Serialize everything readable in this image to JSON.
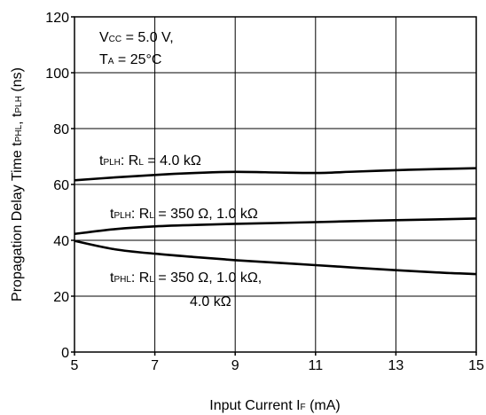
{
  "chart_data": {
    "type": "line",
    "xlim": [
      5,
      15
    ],
    "ylim": [
      0,
      120
    ],
    "grid": true,
    "xticks": [
      "5",
      "7",
      "9",
      "11",
      "13",
      "15"
    ],
    "yticks": [
      "0",
      "20",
      "40",
      "60",
      "80",
      "100",
      "120"
    ],
    "xlabel": {
      "main": "Input Current  I",
      "sub": "F",
      "unit": " (mA)"
    },
    "ylabel": {
      "prefix": "Propagation Delay Time  t",
      "sub1": "PHL",
      "mid": ", t",
      "sub2": "PLH",
      "unit": " (ns)"
    },
    "conditions": [
      {
        "main": "V",
        "sub": "CC",
        "rest": " = 5.0 V,"
      },
      {
        "main": "T",
        "sub": "A",
        "rest": " = 25°C"
      }
    ],
    "series": [
      {
        "name": "tPLH: RL = 4.0 kΩ",
        "label_lines": [
          [
            {
              "t": "t",
              "s": false
            },
            {
              "t": "PLH",
              "s": true
            },
            {
              "t": ": R",
              "s": false
            },
            {
              "t": "L",
              "s": true
            },
            {
              "t": " = 4.0 kΩ",
              "s": false
            }
          ]
        ],
        "x": [
          5,
          6,
          7,
          8,
          9,
          10,
          11,
          12,
          13,
          14,
          15
        ],
        "y": [
          61.5,
          62.5,
          63.4,
          64.1,
          64.5,
          64.3,
          64.1,
          64.6,
          65.1,
          65.5,
          65.8
        ]
      },
      {
        "name": "tPLH: RL = 350 Ω, 1.0 kΩ",
        "label_lines": [
          [
            {
              "t": "t",
              "s": false
            },
            {
              "t": "PLH",
              "s": true
            },
            {
              "t": ": R",
              "s": false
            },
            {
              "t": "L",
              "s": true
            },
            {
              "t": " = 350 Ω, 1.0 kΩ",
              "s": false
            }
          ]
        ],
        "x": [
          5,
          6,
          7,
          8,
          9,
          10,
          11,
          12,
          13,
          14,
          15
        ],
        "y": [
          42.3,
          44.0,
          45.0,
          45.5,
          45.9,
          46.2,
          46.5,
          46.9,
          47.2,
          47.5,
          47.8
        ]
      },
      {
        "name": "tPHL: RL = 350 Ω, 1.0 kΩ, 4.0 kΩ",
        "label_lines": [
          [
            {
              "t": "t",
              "s": false
            },
            {
              "t": "PHL",
              "s": true
            },
            {
              "t": ": R",
              "s": false
            },
            {
              "t": "L",
              "s": true
            },
            {
              "t": " = 350 Ω, 1.0 kΩ,",
              "s": false
            }
          ],
          [
            {
              "t": "4.0 kΩ",
              "s": false
            }
          ]
        ],
        "x": [
          5,
          6,
          7,
          8,
          9,
          10,
          11,
          12,
          13,
          14,
          15
        ],
        "y": [
          39.8,
          36.8,
          35.2,
          34.0,
          32.9,
          32.0,
          31.1,
          30.2,
          29.3,
          28.5,
          27.9
        ]
      }
    ]
  }
}
